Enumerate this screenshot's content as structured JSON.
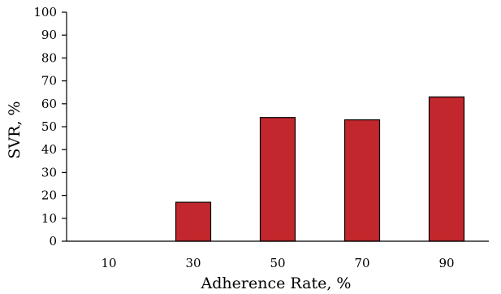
{
  "chart_data": {
    "type": "bar",
    "title": "",
    "xlabel": "Adherence Rate, %",
    "ylabel": "SVR, %",
    "categories": [
      "10",
      "30",
      "50",
      "70",
      "90"
    ],
    "values": [
      0,
      17,
      54,
      53,
      63
    ],
    "ylim": [
      0,
      100
    ],
    "yticks": [
      "0",
      "10",
      "20",
      "30",
      "40",
      "50",
      "60",
      "70",
      "80",
      "90",
      "100"
    ],
    "grid": false,
    "legend": "none",
    "bar_color": "#C1272D",
    "bar_edge_color": "#000000"
  }
}
